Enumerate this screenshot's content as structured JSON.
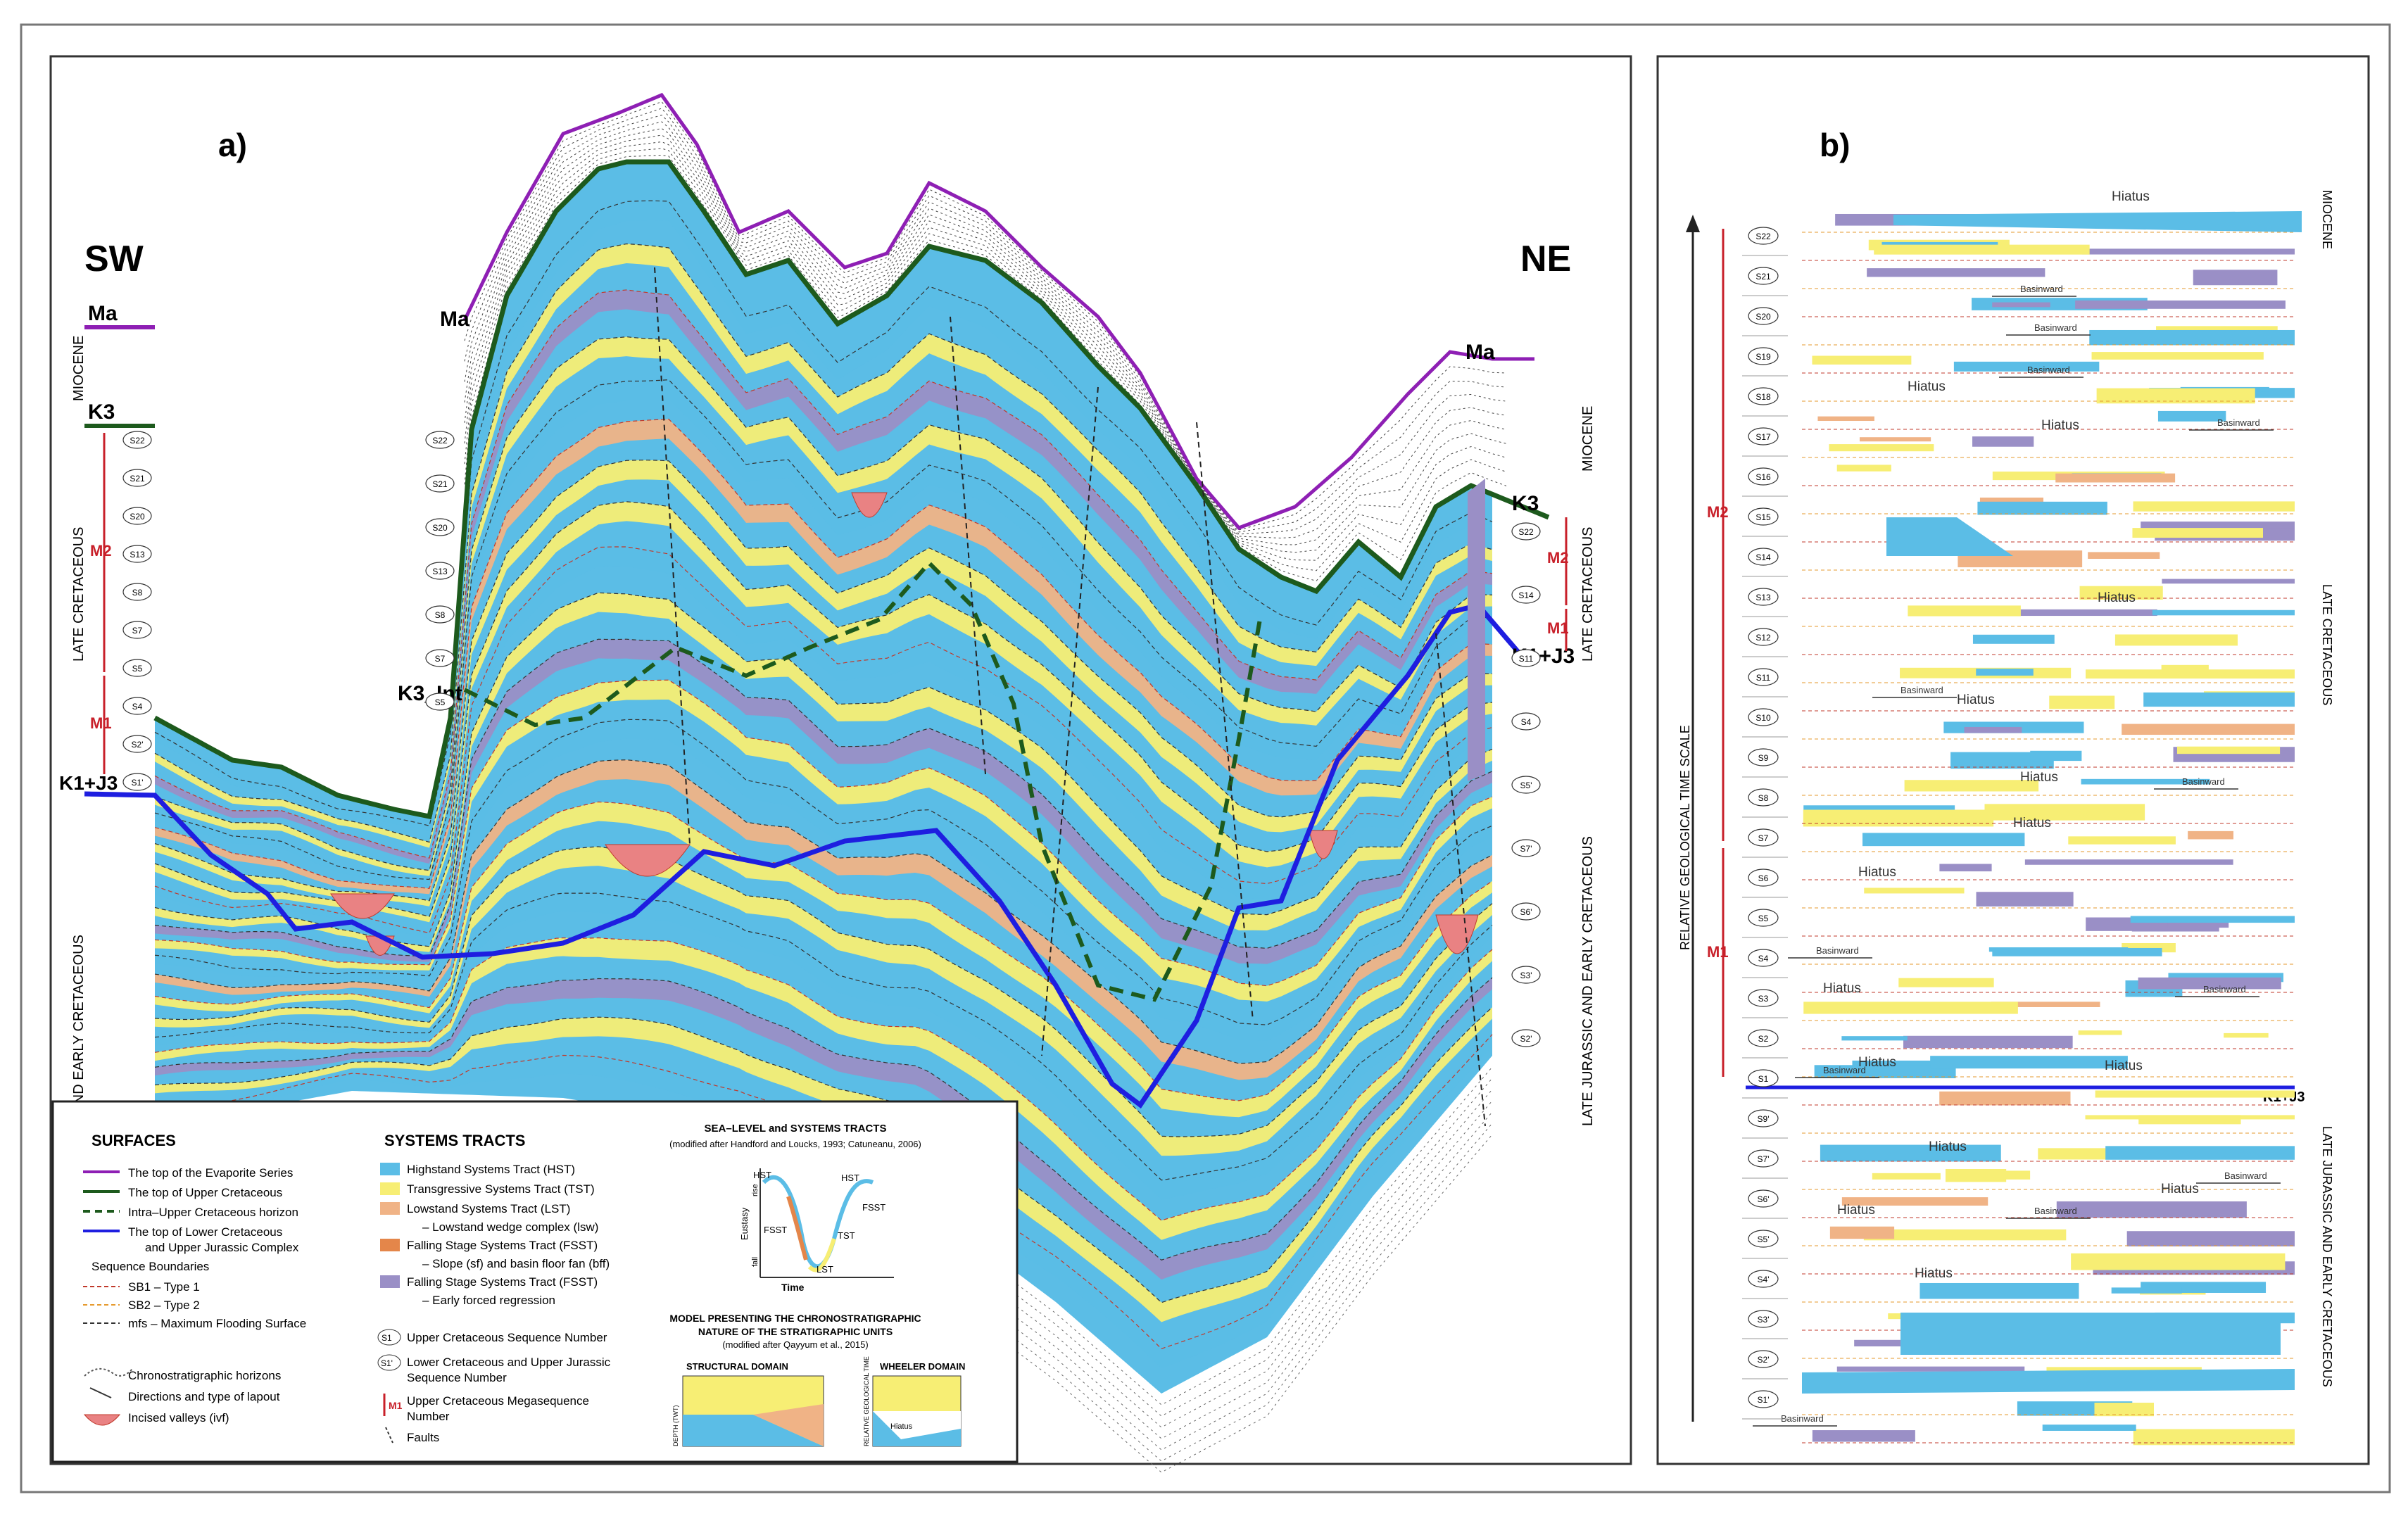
{
  "colors": {
    "hst": "#5bbde6",
    "tst": "#f7ee74",
    "lst": "#f0b386",
    "fsst_sf": "#e4864a",
    "fsst_efr": "#9a8fc6",
    "ivf": "#e98283",
    "evaporite": "#8e1fb4",
    "upper_cret": "#1d5a1d",
    "intra_upper_cret": "#1d5a1d",
    "lower_cret": "#1e1ee0",
    "sb1": "#c0392b",
    "sb2": "#e69a2e",
    "mfs": "#333333",
    "megaseq": "#c8202a"
  },
  "panel_a": {
    "label": "a)",
    "sw": "SW",
    "ne": "NE",
    "horizon_labels": {
      "ma_left": "Ma",
      "ma_mid": "Ma",
      "ma_right": "Ma",
      "k3_left": "K3",
      "k3_right": "K3",
      "k3_int": "K3_Int",
      "k1j3_left": "K1+J3",
      "k1j3_right": "K1+J3"
    },
    "left_column": {
      "miocene": "MIOCENE",
      "late_cretaceous": "LATE CRETACEOUS",
      "late_jurassic": "LATE JURASSIC AND EARLY CRETACEOUS",
      "m2": "M2",
      "m1": "M1",
      "seq": [
        "S22",
        "S21",
        "S20",
        "S13",
        "S8",
        "S7",
        "S5",
        "S4",
        "S2'",
        "S1'"
      ]
    },
    "mid_column": {
      "seq": [
        "S22",
        "S21",
        "S20",
        "S13",
        "S8",
        "S7",
        "S5"
      ]
    },
    "right_column": {
      "miocene": "MIOCENE",
      "late_cretaceous": "LATE CRETACEOUS",
      "late_jurassic": "LATE JURASSIC AND EARLY CRETACEOUS",
      "m2": "M2",
      "m1": "M1",
      "seq": [
        "S22",
        "S14",
        "S11",
        "S4",
        "S5'",
        "S7'",
        "S6'",
        "S3'",
        "S2'"
      ]
    }
  },
  "legend": {
    "surfaces_title": "SURFACES",
    "surfaces": [
      "The top of the Evaporite Series",
      "The top of Upper Cretaceous",
      "Intra–Upper Cretaceous horizon",
      "The top of Lower Cretaceous",
      "and Upper Jurassic Complex"
    ],
    "seq_bound_title": "Sequence Boundaries",
    "seq_bounds": [
      "SB1 – Type 1",
      "SB2 – Type 2",
      "mfs – Maximum Flooding Surface"
    ],
    "misc": [
      "Chronostratigraphic horizons",
      "Directions and type of lapout",
      "Incised valleys (ivf)"
    ],
    "systems_title": "SYSTEMS TRACTS",
    "systems": [
      "Highstand Systems Tract (HST)",
      "Transgressive Systems Tract (TST)",
      "Lowstand Systems Tract (LST)",
      "– Lowstand wedge complex (lsw)",
      "Falling Stage Systems Tract (FSST)",
      "– Slope (sf) and basin floor fan (bff)",
      "Falling Stage Systems Tract (FSST)",
      "– Early forced regression"
    ],
    "seq_numbers": [
      {
        "sym": "S1",
        "text": "Upper Cretaceous Sequence Number"
      },
      {
        "sym": "S1'",
        "text": "Lower Cretaceous and Upper Jurassic"
      },
      {
        "sym": "",
        "text": "Sequence Number"
      },
      {
        "sym": "M1",
        "text": "Upper Cretaceous Megasequence"
      },
      {
        "sym": "",
        "text": "Number"
      },
      {
        "sym": "",
        "text": "Faults"
      }
    ],
    "sea_level_title": "SEA–LEVEL and SYSTEMS TRACTS",
    "sea_level_sub": "(modified after Handford and Loucks, 1993; Catuneanu, 2006)",
    "curve_labels": {
      "hst1": "HST",
      "hst2": "HST",
      "fsst1": "FSST",
      "fsst2": "FSST",
      "tst": "TST",
      "lst": "LST",
      "eustasy": "Eustasy",
      "rise": "rise",
      "fall": "fall",
      "time": "Time"
    },
    "model_title": "MODEL PRESENTING THE CHRONOSTRATIGRAPHIC",
    "model_title2": "NATURE OF THE STRATIGRAPHIC UNITS",
    "model_sub": "(modified after Qayyum et al., 2015)",
    "structural": "STRUCTURAL DOMAIN",
    "wheeler": "WHEELER DOMAIN",
    "depth": "DEPTH (TWT)",
    "rel_time": "RELATIVE GEOLOGICAL TIME",
    "hiatus_small": "Hiatus"
  },
  "panel_b": {
    "label": "b)",
    "axis_label": "RELATIVE GEOLOGICAL TIME SCALE",
    "right_labels": {
      "miocene": "MIOCENE",
      "late_cret": "LATE CRETACEOUS",
      "late_jur": "LATE JURASSIC AND EARLY CRETACEOUS"
    },
    "m2": "M2",
    "m1": "M1",
    "k1j3": "K1+J3",
    "seq": [
      "S22",
      "S21",
      "S20",
      "S19",
      "S18",
      "S17",
      "S16",
      "S15",
      "S14",
      "S13",
      "S12",
      "S11",
      "S10",
      "S9",
      "S8",
      "S7",
      "S6",
      "S5",
      "S4",
      "S3",
      "S2",
      "S1",
      "S9'",
      "S7'",
      "S6'",
      "S5'",
      "S4'",
      "S3'",
      "S2'",
      "S1'"
    ],
    "hiatus": [
      "Hiatus",
      "Hiatus",
      "Hiatus",
      "Hiatus",
      "Hiatus",
      "Hiatus",
      "Hiatus",
      "Hiatus",
      "Hiatus",
      "Hiatus",
      "Hiatus",
      "Hiatus",
      "Hiatus",
      "Hiatus",
      "Hiatus"
    ],
    "basinward": [
      "Basinward",
      "Basinward",
      "Basinward",
      "Basinward",
      "Basinward",
      "Basinward",
      "Basinward",
      "Basinward",
      "Basinward",
      "Basinward",
      "Basinward",
      "Basinward"
    ]
  }
}
